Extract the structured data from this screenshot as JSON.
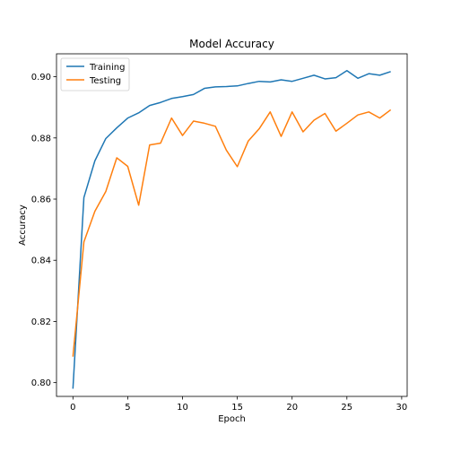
{
  "chart_data": {
    "type": "line",
    "title": "Model Accuracy",
    "xlabel": "Epoch",
    "ylabel": "Accuracy",
    "xlim": [
      -1.5,
      30.5
    ],
    "ylim": [
      0.7955,
      0.9075
    ],
    "xticks": [
      0,
      5,
      10,
      15,
      20,
      25,
      30
    ],
    "xtick_labels": [
      "0",
      "5",
      "10",
      "15",
      "20",
      "25",
      "30"
    ],
    "yticks": [
      0.8,
      0.82,
      0.84,
      0.86,
      0.88,
      0.9
    ],
    "ytick_labels": [
      "0.80",
      "0.82",
      "0.84",
      "0.86",
      "0.88",
      "0.90"
    ],
    "grid": false,
    "legend_position": "top-left",
    "x": [
      0,
      1,
      2,
      3,
      4,
      5,
      6,
      7,
      8,
      9,
      10,
      11,
      12,
      13,
      14,
      15,
      16,
      17,
      18,
      19,
      20,
      21,
      22,
      23,
      24,
      25,
      26,
      27,
      28,
      29
    ],
    "series": [
      {
        "name": "Training",
        "color": "#1f77b4",
        "values": [
          0.798,
          0.8605,
          0.8725,
          0.8798,
          0.8833,
          0.8865,
          0.8882,
          0.8906,
          0.8916,
          0.8929,
          0.8935,
          0.8942,
          0.8962,
          0.8967,
          0.8968,
          0.897,
          0.8978,
          0.8985,
          0.8983,
          0.899,
          0.8985,
          0.8995,
          0.9005,
          0.8993,
          0.8997,
          0.902,
          0.8995,
          0.901,
          0.9005,
          0.9017
        ]
      },
      {
        "name": "Testing",
        "color": "#ff7f0e",
        "values": [
          0.8085,
          0.846,
          0.856,
          0.8625,
          0.8735,
          0.8707,
          0.858,
          0.8777,
          0.8783,
          0.8865,
          0.8808,
          0.8855,
          0.8848,
          0.8838,
          0.876,
          0.8706,
          0.879,
          0.883,
          0.8885,
          0.8805,
          0.8885,
          0.882,
          0.8858,
          0.888,
          0.8822,
          0.8848,
          0.8875,
          0.8885,
          0.8865,
          0.8892
        ]
      }
    ]
  }
}
